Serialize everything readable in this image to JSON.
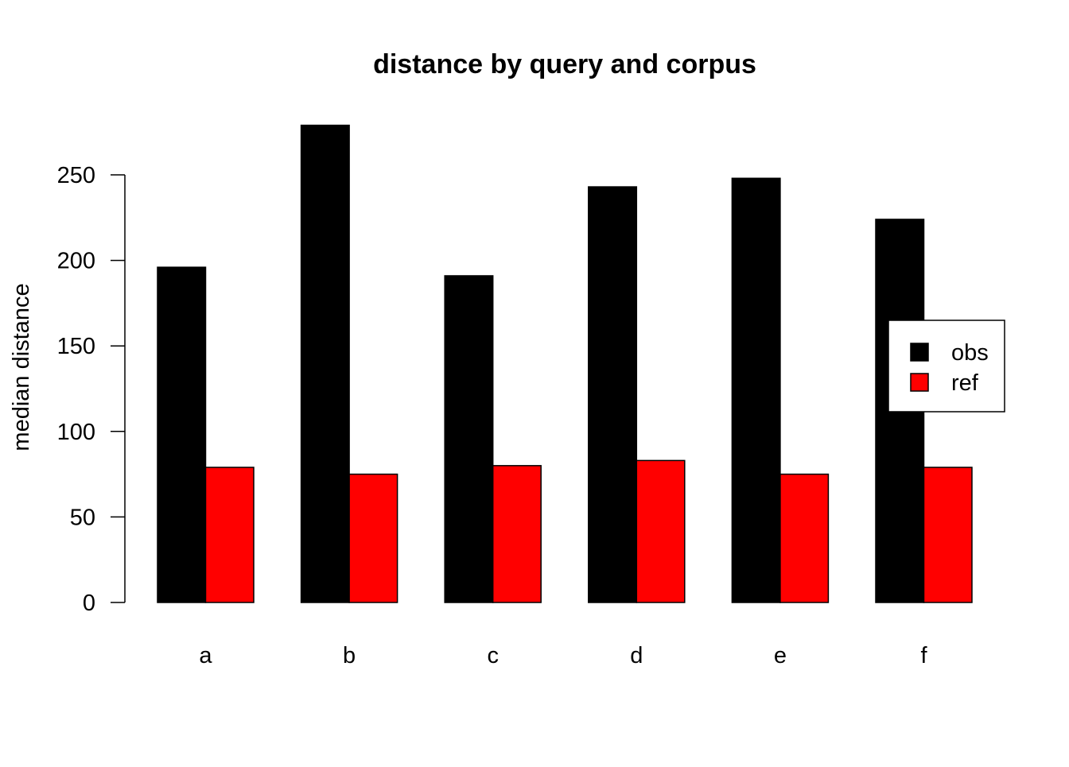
{
  "chart_data": {
    "type": "bar",
    "title": "distance by query and corpus",
    "xlabel": "",
    "ylabel": "median distance",
    "categories": [
      "a",
      "b",
      "c",
      "d",
      "e",
      "f"
    ],
    "series": [
      {
        "name": "obs",
        "color": "#000000",
        "values": [
          196,
          279,
          191,
          243,
          248,
          224
        ]
      },
      {
        "name": "ref",
        "color": "#ff0000",
        "values": [
          79,
          75,
          80,
          83,
          75,
          79
        ]
      }
    ],
    "yticks": [
      0,
      50,
      100,
      150,
      200,
      250
    ],
    "ylim": [
      0,
      285
    ],
    "grid": false,
    "legend_position": "right"
  }
}
